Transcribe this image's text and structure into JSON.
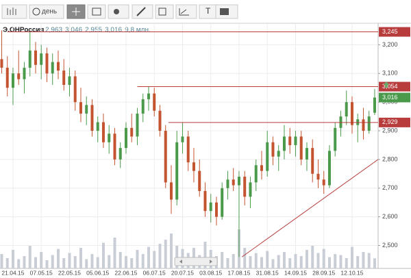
{
  "toolbar": {
    "period": "день",
    "text_tool": "T"
  },
  "chart_data": {
    "type": "candlestick",
    "title": "Э.ОНРоссия",
    "info": [
      "2,963",
      "3,046",
      "2,955",
      "3,016",
      "9,8 млн."
    ],
    "categories": [
      null,
      null,
      "21.04.15",
      null,
      null,
      null,
      null,
      "07.05.15",
      null,
      null,
      null,
      null,
      "22.05.15",
      null,
      null,
      null,
      null,
      "05.06.15",
      null,
      null,
      null,
      null,
      "22.06.15",
      null,
      null,
      null,
      null,
      "06.07.15",
      null,
      null,
      null,
      null,
      "20.07.15",
      null,
      null,
      null,
      null,
      "03.08.15",
      null,
      null,
      null,
      null,
      "17.08.15",
      null,
      null,
      null,
      null,
      "31.08.15",
      null,
      null,
      null,
      null,
      "14.09.15",
      null,
      null,
      null,
      null,
      "28.09.15",
      null,
      null,
      null,
      null,
      "12.10.15",
      null,
      null,
      null,
      null
    ],
    "open": [
      3.15,
      3.12,
      3.05,
      3.1,
      3.08,
      3.12,
      3.18,
      3.13,
      3.17,
      3.1,
      3.14,
      3.11,
      3.06,
      3.09,
      3.0,
      2.96,
      2.99,
      2.9,
      2.93,
      2.86,
      2.89,
      2.8,
      2.84,
      2.91,
      2.88,
      2.96,
      3.01,
      3.03,
      2.97,
      2.9,
      2.72,
      2.66,
      2.86,
      2.88,
      2.79,
      2.76,
      2.69,
      2.62,
      2.65,
      2.6,
      2.7,
      2.73,
      2.71,
      2.74,
      2.67,
      2.72,
      2.78,
      2.76,
      2.86,
      2.81,
      2.83,
      2.88,
      2.85,
      2.88,
      2.8,
      2.84,
      2.75,
      2.73,
      2.71,
      2.83,
      2.91,
      2.95,
      3.0,
      2.92,
      2.94,
      2.9,
      2.963
    ],
    "high": [
      3.25,
      3.16,
      3.12,
      3.18,
      3.14,
      3.245,
      3.21,
      3.2,
      3.19,
      3.17,
      3.18,
      3.15,
      3.12,
      3.11,
      3.05,
      3.02,
      3.01,
      2.95,
      2.96,
      2.92,
      2.91,
      2.86,
      2.93,
      2.96,
      2.98,
      3.03,
      3.054,
      3.05,
      2.99,
      2.92,
      2.78,
      2.9,
      2.93,
      2.9,
      2.84,
      2.8,
      2.72,
      2.68,
      2.67,
      2.72,
      2.76,
      2.77,
      2.76,
      2.76,
      2.74,
      2.8,
      2.83,
      2.9,
      2.88,
      2.85,
      2.92,
      2.91,
      2.9,
      2.9,
      2.86,
      2.87,
      2.8,
      2.76,
      2.85,
      2.93,
      2.97,
      3.04,
      3.02,
      2.96,
      2.98,
      2.97,
      3.046
    ],
    "low": [
      3.1,
      3.02,
      2.99,
      3.06,
      3.03,
      3.09,
      3.1,
      3.08,
      3.07,
      3.06,
      3.08,
      3.04,
      3.02,
      2.97,
      2.93,
      2.92,
      2.88,
      2.86,
      2.84,
      2.82,
      2.78,
      2.77,
      2.82,
      2.86,
      2.85,
      2.93,
      2.97,
      2.95,
      2.88,
      2.7,
      2.61,
      2.64,
      2.82,
      2.76,
      2.72,
      2.67,
      2.6,
      2.58,
      2.57,
      2.59,
      2.66,
      2.69,
      2.46,
      2.64,
      2.63,
      2.69,
      2.73,
      2.74,
      2.78,
      2.76,
      2.8,
      2.82,
      2.81,
      2.78,
      2.76,
      2.72,
      2.7,
      2.68,
      2.7,
      2.81,
      2.88,
      2.92,
      2.89,
      2.86,
      2.87,
      2.89,
      2.955
    ],
    "close": [
      3.12,
      3.05,
      3.1,
      3.08,
      3.12,
      3.18,
      3.13,
      3.17,
      3.1,
      3.14,
      3.11,
      3.06,
      3.09,
      3.0,
      2.96,
      2.99,
      2.9,
      2.93,
      2.86,
      2.89,
      2.8,
      2.84,
      2.91,
      2.88,
      2.96,
      3.01,
      3.03,
      2.97,
      2.9,
      2.72,
      2.66,
      2.86,
      2.88,
      2.79,
      2.76,
      2.69,
      2.62,
      2.65,
      2.6,
      2.7,
      2.73,
      2.71,
      2.74,
      2.67,
      2.72,
      2.78,
      2.76,
      2.86,
      2.81,
      2.83,
      2.88,
      2.85,
      2.88,
      2.8,
      2.84,
      2.75,
      2.73,
      2.71,
      2.83,
      2.91,
      2.95,
      3.0,
      2.92,
      2.94,
      2.9,
      2.95,
      3.016
    ],
    "volume": [
      14,
      10,
      18,
      9,
      12,
      22,
      11,
      16,
      8,
      13,
      19,
      10,
      15,
      12,
      20,
      9,
      14,
      11,
      25,
      13,
      30,
      16,
      12,
      10,
      18,
      14,
      21,
      17,
      24,
      28,
      34,
      22,
      19,
      15,
      20,
      13,
      26,
      18,
      12,
      16,
      10,
      14,
      38,
      20,
      12,
      15,
      11,
      17,
      9,
      13,
      16,
      10,
      14,
      12,
      18,
      22,
      15,
      19,
      11,
      14,
      13,
      10,
      21,
      12,
      16,
      15,
      9.8
    ],
    "last": {
      "value": 3.016,
      "label": "3,016"
    },
    "hlines": [
      {
        "value": 3.245,
        "label": "3,245",
        "from": 1
      },
      {
        "value": 3.054,
        "label": "3,054",
        "from": 24
      },
      {
        "value": 2.929,
        "label": "2,929",
        "from": 29.5
      }
    ],
    "trendline": {
      "x": [
        42.5,
        66.61
      ],
      "y": [
        2.46,
        2.8
      ]
    },
    "xlim": [
      -0.3,
      66.61
    ],
    "ylim": [
      2.42,
      3.275
    ],
    "yticks": [
      {
        "value": 2.5,
        "label": "2,500"
      },
      {
        "value": 2.6,
        "label": "2,600"
      },
      {
        "value": 2.7,
        "label": "2,700"
      },
      {
        "value": 2.8,
        "label": "2,800"
      },
      {
        "value": 2.9,
        "label": "2,900"
      },
      {
        "value": 3.0,
        "label": "3,000"
      },
      {
        "value": 3.1,
        "label": "3,100"
      },
      {
        "value": 3.2,
        "label": "3,200"
      }
    ],
    "grid": true,
    "up_color": "#4b9a4b",
    "down_color": "#c4532f",
    "line_color": "#b83c3c",
    "volume_color": "#c9ced6"
  }
}
